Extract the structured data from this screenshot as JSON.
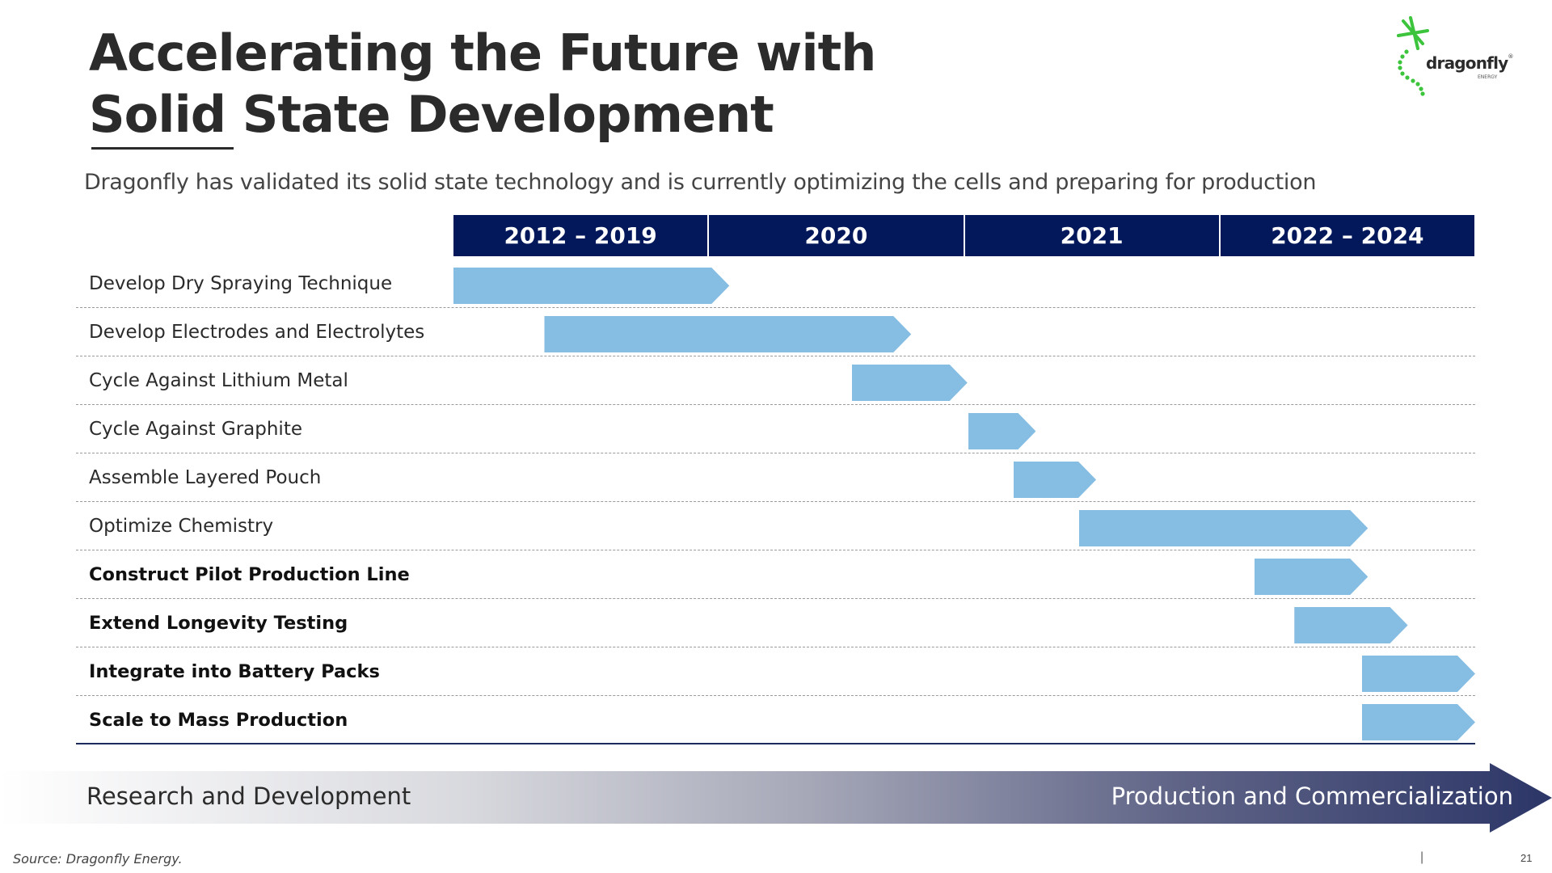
{
  "slide": {
    "title_line1": "Accelerating the Future with",
    "title_line2": "Solid State Development",
    "subtitle": "Dragonfly has validated its solid state technology and is currently optimizing the cells and preparing for production",
    "logo_text": "dragonfly",
    "logo_mark": "®",
    "logo_subtext": "ENERGY",
    "source": "Source: Dragonfly Energy.",
    "separator": "|",
    "page_number": "21"
  },
  "timeline": {
    "periods": [
      "2012 – 2019",
      "2020",
      "2021",
      "2022 – 2024"
    ],
    "tasks": [
      {
        "label": "Develop Dry Spraying Technique",
        "bold": false,
        "start": 0.0,
        "end": 0.27
      },
      {
        "label": "Develop Electrodes and Electrolytes",
        "bold": false,
        "start": 0.089,
        "end": 0.448
      },
      {
        "label": "Cycle Against Lithium Metal",
        "bold": false,
        "start": 0.39,
        "end": 0.503
      },
      {
        "label": "Cycle Against Graphite",
        "bold": false,
        "start": 0.504,
        "end": 0.57
      },
      {
        "label": "Assemble Layered Pouch",
        "bold": false,
        "start": 0.548,
        "end": 0.629
      },
      {
        "label": "Optimize Chemistry",
        "bold": false,
        "start": 0.612,
        "end": 0.895
      },
      {
        "label": "Construct Pilot Production Line",
        "bold": true,
        "start": 0.784,
        "end": 0.895
      },
      {
        "label": "Extend Longevity Testing",
        "bold": true,
        "start": 0.823,
        "end": 0.934
      },
      {
        "label": "Integrate into Battery Packs",
        "bold": true,
        "start": 0.889,
        "end": 1.0
      },
      {
        "label": "Scale to Mass Production",
        "bold": true,
        "start": 0.889,
        "end": 1.0
      }
    ],
    "bar_color": "#86bde3",
    "header_color": "#03185a"
  },
  "phases": {
    "left": "Research and Development",
    "right": "Production and Commercialization"
  }
}
